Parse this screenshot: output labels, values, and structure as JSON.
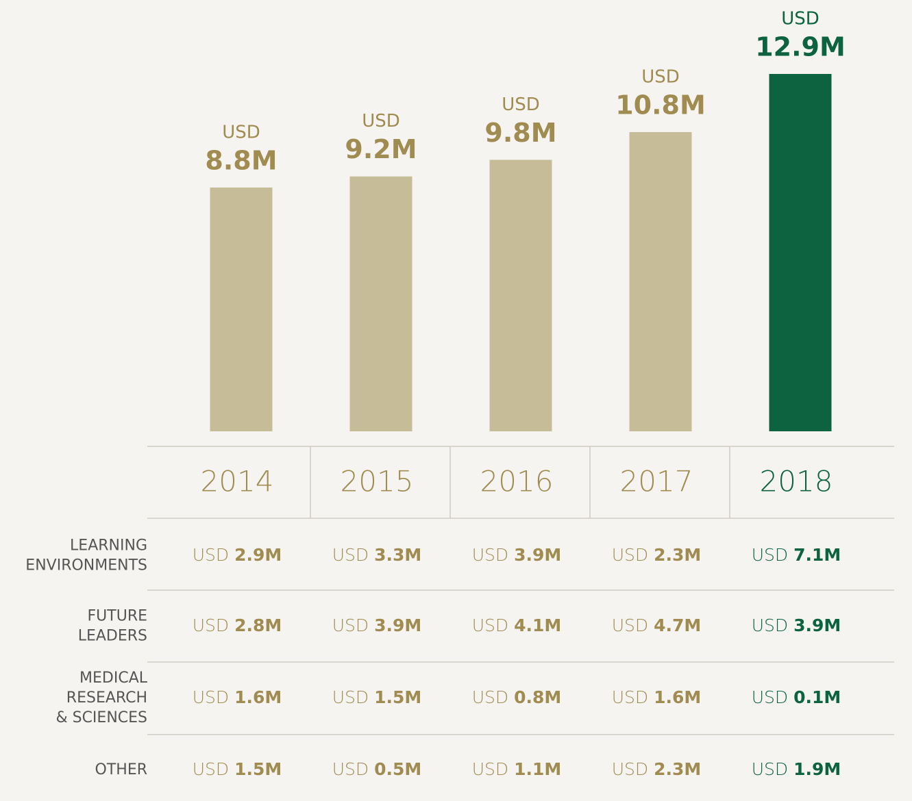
{
  "chart_data": {
    "type": "bar",
    "currency": "USD",
    "categories": [
      "2014",
      "2015",
      "2016",
      "2017",
      "2018"
    ],
    "values": [
      8.8,
      9.2,
      9.8,
      10.8,
      12.9
    ],
    "value_labels": [
      "8.8M",
      "9.2M",
      "9.8M",
      "10.8M",
      "12.9M"
    ],
    "colors": [
      "#c6bc98",
      "#c6bc98",
      "#c6bc98",
      "#c6bc98",
      "#0d6340"
    ],
    "text_colors": [
      "#a08b50",
      "#a08b50",
      "#a08b50",
      "#a08b50",
      "#0d6340"
    ]
  },
  "table": {
    "rows": [
      {
        "label": [
          "LEARNING",
          "ENVIRONMENTS"
        ],
        "cells": [
          "2.9M",
          "3.3M",
          "3.9M",
          "2.3M",
          "7.1M"
        ]
      },
      {
        "label": [
          "FUTURE",
          "LEADERS"
        ],
        "cells": [
          "2.8M",
          "3.9M",
          "4.1M",
          "4.7M",
          "3.9M"
        ]
      },
      {
        "label": [
          "MEDICAL",
          "RESEARCH",
          "& SCIENCES"
        ],
        "cells": [
          "1.6M",
          "1.5M",
          "0.8M",
          "1.6M",
          "0.1M"
        ]
      },
      {
        "label": [
          "OTHER"
        ],
        "cells": [
          "1.5M",
          "0.5M",
          "1.1M",
          "2.3M",
          "1.9M"
        ]
      }
    ]
  }
}
